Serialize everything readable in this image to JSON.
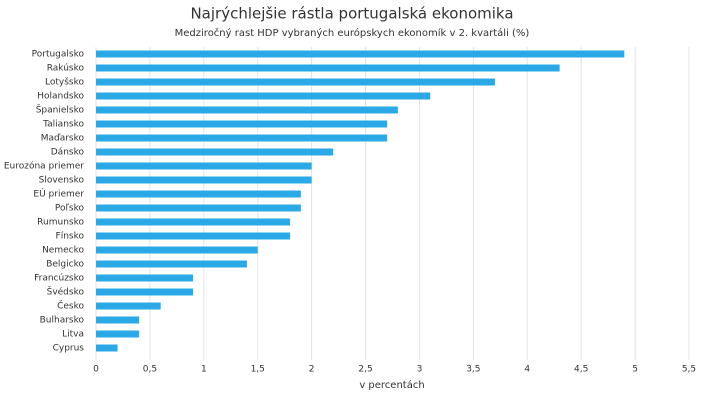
{
  "chart_data": {
    "type": "bar",
    "orientation": "horizontal",
    "title": "Najrýchlejšie rástla portugalská ekonomika",
    "subtitle": "Medziročný rast HDP vybraných európskych ekonomík v 2. kvartáli (%)",
    "x_label": "v percentách",
    "categories": [
      "Portugalsko",
      "Rakúsko",
      "Lotyšsko",
      "Holandsko",
      "Španielsko",
      "Taliansko",
      "Maďarsko",
      "Dánsko",
      "Eurozóna priemer",
      "Slovensko",
      "EÚ priemer",
      "Poľsko",
      "Rumunsko",
      "Fínsko",
      "Nemecko",
      "Belgicko",
      "Francúzsko",
      "Švédsko",
      "Česko",
      "Bulharsko",
      "Litva",
      "Cyprus"
    ],
    "values": [
      4.9,
      4.3,
      3.7,
      3.1,
      2.8,
      2.7,
      2.7,
      2.2,
      2.0,
      2.0,
      1.9,
      1.9,
      1.8,
      1.8,
      1.5,
      1.4,
      0.9,
      0.9,
      0.6,
      0.4,
      0.4,
      0.2
    ],
    "color": "#2aa9e6",
    "xlim": [
      0,
      5.5
    ],
    "xticks": [
      0,
      {
        "value": 0.5,
        "label": "0,5"
      },
      1,
      {
        "value": 1.5,
        "label": "1,5"
      },
      2,
      {
        "value": 2.5,
        "label": "2,5"
      },
      3,
      {
        "value": 3.5,
        "label": "3,5"
      },
      4,
      {
        "value": 4.5,
        "label": "4,5"
      },
      5,
      {
        "value": 5.5,
        "label": "5,5"
      }
    ],
    "grid": true
  }
}
